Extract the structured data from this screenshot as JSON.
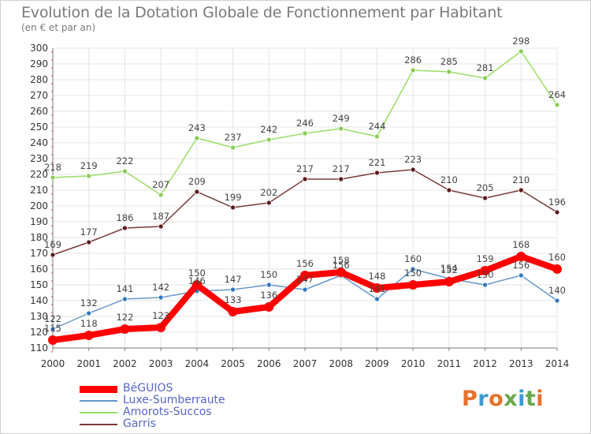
{
  "header": {
    "title": "Evolution de la Dotation Globale de Fonctionnement par Habitant",
    "subtitle": "(en € et par an)"
  },
  "logo": {
    "text": "Proxiti",
    "colors": [
      "#e8702a",
      "#3d9ad1",
      "#e8702a",
      "#6aa84f",
      "#3d9ad1",
      "#6aa84f",
      "#e8702a"
    ]
  },
  "chart_data": {
    "type": "line",
    "x": [
      2000,
      2001,
      2002,
      2003,
      2004,
      2005,
      2006,
      2007,
      2008,
      2009,
      2010,
      2011,
      2012,
      2013,
      2014
    ],
    "ylim": [
      110,
      300
    ],
    "yticks": [
      110,
      120,
      130,
      140,
      150,
      160,
      170,
      180,
      190,
      200,
      210,
      220,
      230,
      240,
      250,
      260,
      270,
      280,
      290,
      300
    ],
    "grid": true,
    "legend_position": "bottom-left",
    "series": [
      {
        "name": "Amorots-Succos",
        "color": "#99dd66",
        "point_color": "#88cc55",
        "width": 1.5,
        "marker": 3,
        "values": [
          218,
          219,
          222,
          207,
          243,
          237,
          242,
          246,
          249,
          244,
          286,
          285,
          281,
          298,
          264
        ]
      },
      {
        "name": "Garris",
        "color": "#7a3a3a",
        "point_color": "#5a1a1a",
        "width": 1.5,
        "marker": 3,
        "values": [
          169,
          177,
          186,
          187,
          209,
          199,
          202,
          217,
          217,
          221,
          223,
          210,
          205,
          210,
          196
        ]
      },
      {
        "name": "Luxe-Sumberraute",
        "color": "#6699cc",
        "point_color": "#3377bb",
        "width": 1.5,
        "marker": 3,
        "values": [
          122,
          132,
          141,
          142,
          146,
          147,
          150,
          147,
          156,
          141,
          160,
          154,
          150,
          156,
          140
        ]
      },
      {
        "name": "BéGUIOS",
        "color": "#ff0000",
        "point_color": "#ff0000",
        "width": 8,
        "marker": 6,
        "values": [
          115,
          118,
          122,
          123,
          150,
          133,
          136,
          156,
          158,
          148,
          150,
          152,
          159,
          168,
          160
        ]
      }
    ],
    "legend_order": [
      "BéGUIOS",
      "Luxe-Sumberraute",
      "Amorots-Succos",
      "Garris"
    ]
  }
}
